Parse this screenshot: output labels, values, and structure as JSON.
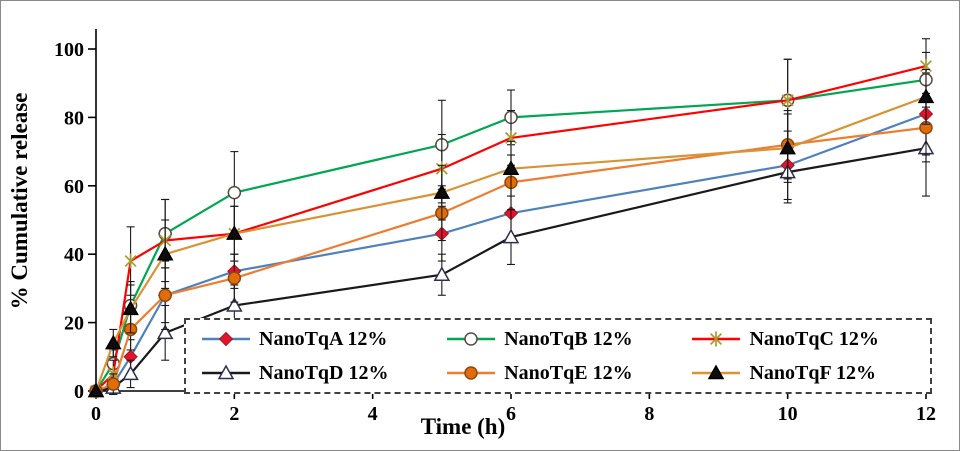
{
  "chart_data": {
    "type": "line",
    "title": "",
    "xlabel": "Time (h)",
    "ylabel": "% Cumulative release",
    "x": [
      0,
      0.25,
      0.5,
      1,
      2,
      5,
      6,
      10,
      12
    ],
    "xlim": [
      0,
      12
    ],
    "ylim": [
      0,
      100
    ],
    "x_ticks": [
      0,
      2,
      4,
      6,
      8,
      10,
      12
    ],
    "y_ticks": [
      0,
      20,
      40,
      60,
      80,
      100
    ],
    "grid": false,
    "legend_position": "inside-bottom",
    "error_bar_color": "#1a1a1a",
    "series": [
      {
        "name": "NanoTqA 12%",
        "line_color": "#4F81BD",
        "marker": "diamond",
        "marker_fill": "#E8112D",
        "marker_stroke": "#9B1B1B",
        "values": [
          0,
          2,
          10,
          28,
          35,
          46,
          52,
          66,
          81
        ],
        "errors": [
          0,
          3,
          5,
          8,
          5,
          8,
          8,
          10,
          12
        ]
      },
      {
        "name": "NanoTqB 12%",
        "line_color": "#00A651",
        "marker": "circle-open",
        "marker_fill": "#FFFFFF",
        "marker_stroke": "#5A4A42",
        "values": [
          0,
          8,
          25,
          46,
          58,
          72,
          80,
          85,
          91
        ],
        "errors": [
          0,
          4,
          7,
          10,
          12,
          13,
          8,
          12,
          8
        ]
      },
      {
        "name": "NanoTqC 12%",
        "line_color": "#FF0000",
        "marker": "asterisk",
        "marker_fill": "none",
        "marker_stroke": "#A89B32",
        "values": [
          0,
          5,
          38,
          44,
          46,
          65,
          74,
          85,
          95
        ],
        "errors": [
          0,
          4,
          10,
          12,
          8,
          10,
          8,
          12,
          8
        ]
      },
      {
        "name": "NanoTqD 12%",
        "line_color": "#1A1A1A",
        "marker": "triangle-open",
        "marker_fill": "#FFFFFF",
        "marker_stroke": "#2E2E4E",
        "values": [
          0,
          1,
          5,
          17,
          25,
          34,
          45,
          64,
          71
        ],
        "errors": [
          0,
          2,
          4,
          8,
          6,
          6,
          8,
          9,
          14
        ]
      },
      {
        "name": "NanoTqE 12%",
        "line_color": "#ED7D31",
        "marker": "circle",
        "marker_fill": "#E36C0A",
        "marker_stroke": "#8A4A10",
        "values": [
          0,
          2,
          18,
          28,
          33,
          52,
          61,
          72,
          77
        ],
        "errors": [
          0,
          3,
          6,
          10,
          7,
          8,
          8,
          10,
          10
        ]
      },
      {
        "name": "NanoTqF 12%",
        "line_color": "#D99334",
        "marker": "triangle",
        "marker_fill": "#0D0D0D",
        "marker_stroke": "#000000",
        "values": [
          0,
          14,
          24,
          40,
          46,
          58,
          65,
          71,
          86
        ],
        "errors": [
          0,
          4,
          7,
          10,
          8,
          8,
          8,
          10,
          8
        ]
      }
    ]
  }
}
